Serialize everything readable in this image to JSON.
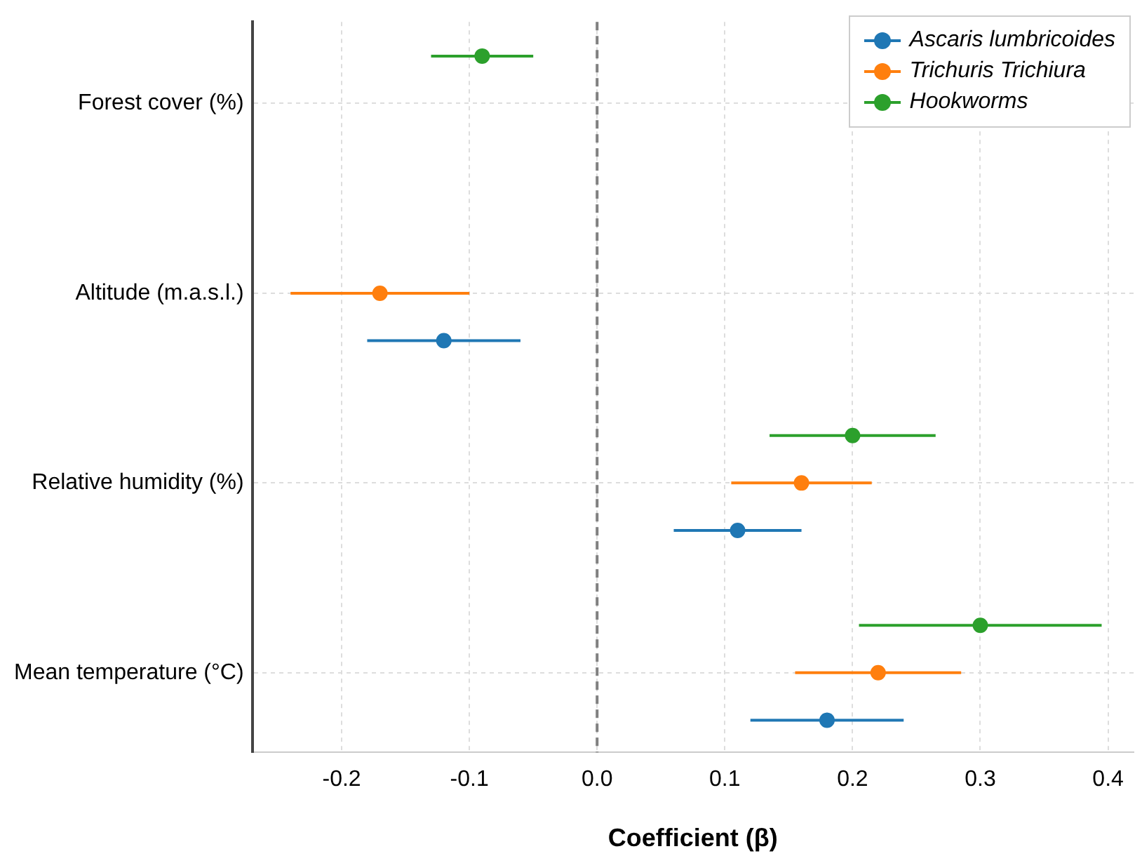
{
  "chart_data": {
    "type": "scatter",
    "orientation": "horizontal",
    "xlabel": "Coefficient (β)",
    "categories": [
      "Forest cover (%)",
      "Altitude (m.a.s.l.)",
      "Relative humidity (%)",
      "Mean temperature (°C)"
    ],
    "series": [
      {
        "name": "Ascaris lumbricoides",
        "color": "#1f77b4",
        "values": [
          null,
          -0.12,
          0.11,
          0.18
        ],
        "errors": [
          null,
          [
            -0.18,
            -0.06
          ],
          [
            0.06,
            0.16
          ],
          [
            0.12,
            0.24
          ]
        ]
      },
      {
        "name": "Trichuris Trichiura",
        "color": "#ff7f0e",
        "values": [
          null,
          -0.17,
          0.16,
          0.22
        ],
        "errors": [
          null,
          [
            -0.24,
            -0.1
          ],
          [
            0.105,
            0.215
          ],
          [
            0.155,
            0.285
          ]
        ]
      },
      {
        "name": "Hookworms",
        "color": "#2ca02c",
        "values": [
          -0.09,
          null,
          0.2,
          0.3
        ],
        "errors": [
          [
            -0.13,
            -0.05
          ],
          null,
          [
            0.135,
            0.265
          ],
          [
            0.205,
            0.395
          ]
        ]
      }
    ],
    "xlim": [
      -0.27,
      0.42
    ],
    "xticks": [
      -0.2,
      -0.1,
      {
        "value": 0,
        "label": "0.0"
      },
      0.1,
      0.2,
      0.3,
      0.4
    ],
    "ref_lines": [
      {
        "axis": "x",
        "value": 0,
        "color": "#808080",
        "line_style": "dashed"
      }
    ],
    "grid": true,
    "legend": "top right",
    "marker": "circle"
  }
}
